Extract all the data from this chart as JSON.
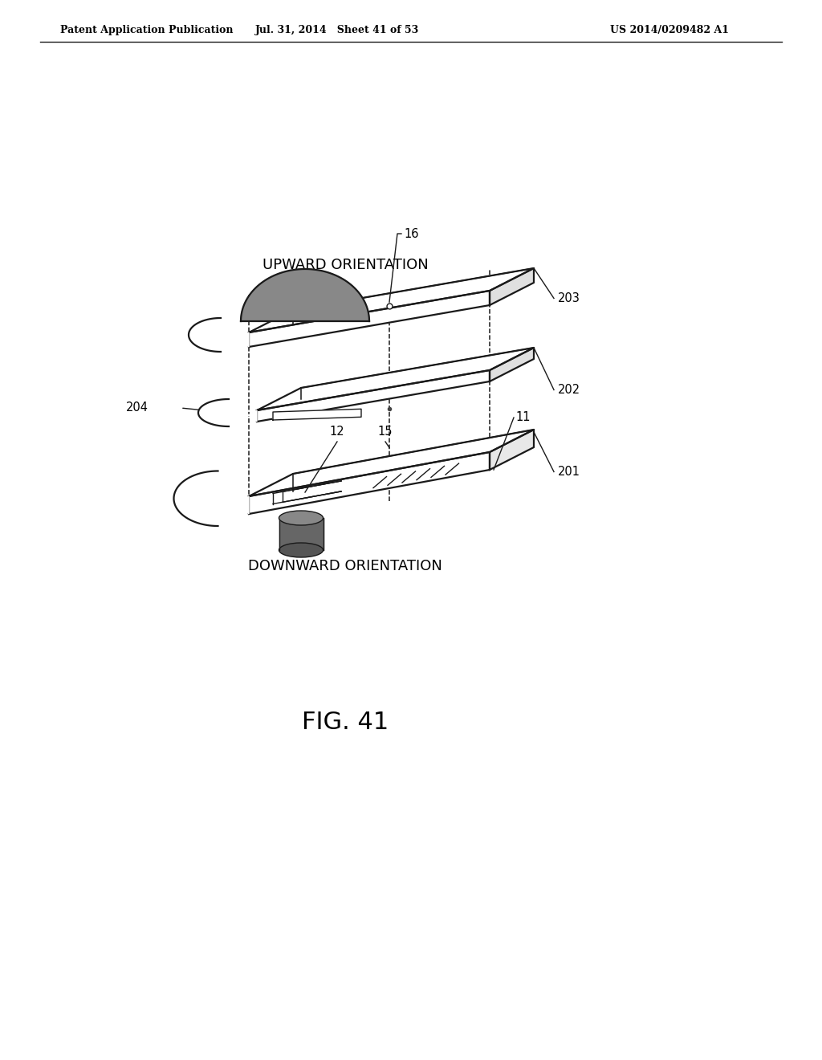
{
  "header_left": "Patent Application Publication",
  "header_mid": "Jul. 31, 2014   Sheet 41 of 53",
  "header_right": "US 2014/0209482 A1",
  "label_upward": "UPWARD ORIENTATION",
  "label_downward": "DOWNWARD ORIENTATION",
  "fig_label": "FIG. 41",
  "background_color": "#ffffff",
  "line_color": "#1a1a1a",
  "dark_gray": "#555555",
  "dome_gray": "#777777",
  "cyl_gray": "#555555"
}
